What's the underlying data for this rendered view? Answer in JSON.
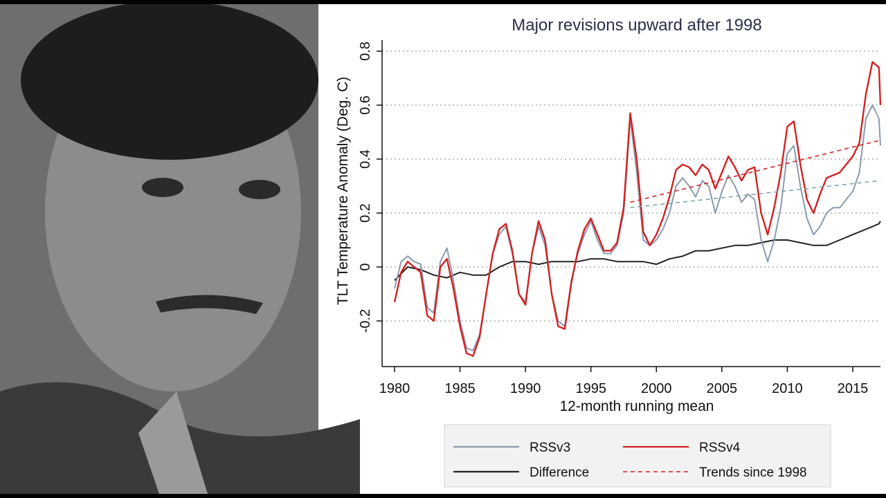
{
  "photo": {
    "description_icon": "portrait-photo"
  },
  "chart_data": {
    "type": "line",
    "title": "Major revisions upward after 1998",
    "xlabel": "12-month running mean",
    "ylabel": "TLT Temperature Anomaly (Deg. C)",
    "xlim": [
      1980,
      2017.5
    ],
    "ylim": [
      -0.37,
      0.82
    ],
    "xticks": [
      1980,
      1985,
      1990,
      1995,
      2000,
      2005,
      2010,
      2015
    ],
    "yticks": [
      -0.2,
      0,
      0.2,
      0.4,
      0.6,
      0.8
    ],
    "ytick_labels": [
      "-0.2",
      "0",
      "0.2",
      "0.4",
      "0.6",
      "0.8"
    ],
    "grid": "horizontal dotted",
    "legend_position": "bottom",
    "series": [
      {
        "name": "RSSv3",
        "color": "#8a9aac",
        "style": "solid",
        "x": [
          1980,
          1980.5,
          1981,
          1981.5,
          1982,
          1982.5,
          1983,
          1983.5,
          1984,
          1984.5,
          1985,
          1985.5,
          1986,
          1986.5,
          1987,
          1987.5,
          1988,
          1988.5,
          1989,
          1989.5,
          1990,
          1990.5,
          1991,
          1991.5,
          1992,
          1992.5,
          1993,
          1993.5,
          1994,
          1994.5,
          1995,
          1995.5,
          1996,
          1996.5,
          1997,
          1997.5,
          1998,
          1998.5,
          1999,
          1999.5,
          2000,
          2000.5,
          2001,
          2001.5,
          2002,
          2002.5,
          2003,
          2003.5,
          2004,
          2004.5,
          2005,
          2005.5,
          2006,
          2006.5,
          2007,
          2007.5,
          2008,
          2008.5,
          2009,
          2009.5,
          2010,
          2010.5,
          2011,
          2011.5,
          2012,
          2012.5,
          2013,
          2013.5,
          2014,
          2014.5,
          2015,
          2015.5,
          2016,
          2016.5,
          2017,
          2017.5
        ],
        "values": [
          -0.08,
          0.02,
          0.04,
          0.02,
          0.01,
          -0.15,
          -0.17,
          0.02,
          0.07,
          -0.05,
          -0.2,
          -0.3,
          -0.31,
          -0.25,
          -0.1,
          0.05,
          0.12,
          0.15,
          0.05,
          -0.1,
          -0.13,
          0.05,
          0.15,
          0.08,
          -0.1,
          -0.2,
          -0.22,
          -0.05,
          0.05,
          0.12,
          0.17,
          0.1,
          0.05,
          0.05,
          0.08,
          0.2,
          0.55,
          0.35,
          0.1,
          0.08,
          0.1,
          0.14,
          0.2,
          0.3,
          0.33,
          0.3,
          0.26,
          0.32,
          0.3,
          0.2,
          0.28,
          0.34,
          0.3,
          0.24,
          0.27,
          0.25,
          0.1,
          0.02,
          0.1,
          0.22,
          0.42,
          0.45,
          0.3,
          0.18,
          0.12,
          0.15,
          0.2,
          0.22,
          0.22,
          0.25,
          0.28,
          0.35,
          0.55,
          0.6,
          0.55,
          0.45
        ]
      },
      {
        "name": "RSSv4",
        "color": "#d42020",
        "style": "solid",
        "x": [
          1980,
          1980.5,
          1981,
          1981.5,
          1982,
          1982.5,
          1983,
          1983.5,
          1984,
          1984.5,
          1985,
          1985.5,
          1986,
          1986.5,
          1987,
          1987.5,
          1988,
          1988.5,
          1989,
          1989.5,
          1990,
          1990.5,
          1991,
          1991.5,
          1992,
          1992.5,
          1993,
          1993.5,
          1994,
          1994.5,
          1995,
          1995.5,
          1996,
          1996.5,
          1997,
          1997.5,
          1998,
          1998.5,
          1999,
          1999.5,
          2000,
          2000.5,
          2001,
          2001.5,
          2002,
          2002.5,
          2003,
          2003.5,
          2004,
          2004.5,
          2005,
          2005.5,
          2006,
          2006.5,
          2007,
          2007.5,
          2008,
          2008.5,
          2009,
          2009.5,
          2010,
          2010.5,
          2011,
          2011.5,
          2012,
          2012.5,
          2013,
          2013.5,
          2014,
          2014.5,
          2015,
          2015.5,
          2016,
          2016.5,
          2017,
          2017.5
        ],
        "values": [
          -0.13,
          -0.02,
          0.02,
          0.0,
          -0.02,
          -0.18,
          -0.2,
          0.0,
          0.03,
          -0.08,
          -0.22,
          -0.32,
          -0.33,
          -0.26,
          -0.1,
          0.05,
          0.14,
          0.16,
          0.06,
          -0.1,
          -0.14,
          0.05,
          0.17,
          0.1,
          -0.1,
          -0.22,
          -0.23,
          -0.06,
          0.06,
          0.14,
          0.18,
          0.12,
          0.06,
          0.06,
          0.09,
          0.22,
          0.57,
          0.4,
          0.13,
          0.08,
          0.12,
          0.18,
          0.26,
          0.36,
          0.38,
          0.37,
          0.34,
          0.38,
          0.36,
          0.29,
          0.35,
          0.41,
          0.37,
          0.32,
          0.36,
          0.37,
          0.2,
          0.12,
          0.22,
          0.35,
          0.52,
          0.54,
          0.38,
          0.25,
          0.2,
          0.27,
          0.33,
          0.34,
          0.35,
          0.38,
          0.41,
          0.46,
          0.64,
          0.76,
          0.74,
          0.6
        ]
      },
      {
        "name": "Difference",
        "color": "#222222",
        "style": "solid",
        "x": [
          1980,
          1981,
          1982,
          1983,
          1984,
          1985,
          1986,
          1987,
          1988,
          1989,
          1990,
          1991,
          1992,
          1993,
          1994,
          1995,
          1996,
          1997,
          1998,
          1999,
          2000,
          2001,
          2002,
          2003,
          2004,
          2005,
          2006,
          2007,
          2008,
          2009,
          2010,
          2011,
          2012,
          2013,
          2014,
          2015,
          2016,
          2017,
          2017.5
        ],
        "values": [
          -0.05,
          0.0,
          -0.01,
          -0.03,
          -0.04,
          -0.02,
          -0.03,
          -0.03,
          0.0,
          0.02,
          0.02,
          0.01,
          0.02,
          0.02,
          0.02,
          0.03,
          0.03,
          0.02,
          0.02,
          0.02,
          0.01,
          0.03,
          0.04,
          0.06,
          0.06,
          0.07,
          0.08,
          0.08,
          0.09,
          0.1,
          0.1,
          0.09,
          0.08,
          0.08,
          0.1,
          0.12,
          0.14,
          0.16,
          0.17
        ]
      },
      {
        "name": "Trends since 1998",
        "color": "#d42020",
        "style": "dashed",
        "x": [
          1998,
          2017.5
        ],
        "values": [
          0.24,
          0.47
        ]
      },
      {
        "name": "",
        "color": "#7aa6b8",
        "style": "dashed",
        "x": [
          1998,
          2017.5
        ],
        "values": [
          0.22,
          0.32
        ]
      }
    ],
    "legend": [
      {
        "label": "RSSv3",
        "color": "#8a9aac",
        "style": "solid"
      },
      {
        "label": "RSSv4",
        "color": "#d42020",
        "style": "solid"
      },
      {
        "label": "Difference",
        "color": "#222222",
        "style": "solid"
      },
      {
        "label": "Trends since 1998",
        "color": "#d42020",
        "style": "dashed"
      }
    ]
  }
}
